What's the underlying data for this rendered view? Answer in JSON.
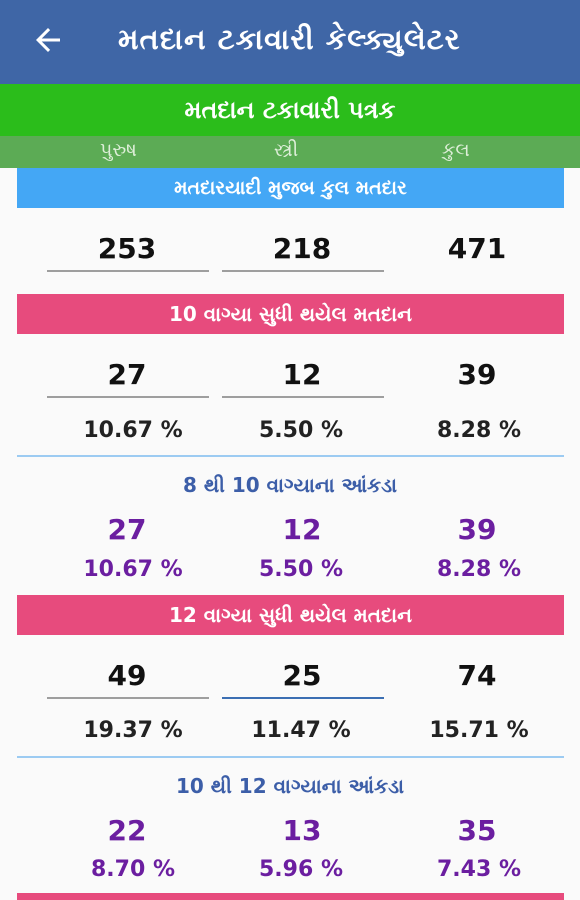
{
  "appbar": {
    "title": "મતદાન ટકાવારી કેલ્ક્યુલેટર",
    "back_icon": "arrow-left-icon"
  },
  "sheet_title": "મતદાન ટકાવારી પત્રક",
  "columns": [
    "પુરુષ",
    "સ્ત્રી",
    "કુલ"
  ],
  "total_voters": {
    "label": "મતદારયાદી મુજબ કુલ મતદાર",
    "male": "253",
    "female": "218",
    "total": "471"
  },
  "slot_10": {
    "label": "10 વાગ્યા સુધી થયેલ મતદાન",
    "male": "27",
    "female": "12",
    "total": "39",
    "male_pct": "10.67 %",
    "female_pct": "5.50 %",
    "total_pct": "8.28 %"
  },
  "range_8_10": {
    "label": "8 થી 10 વાગ્યાના આંકડા",
    "male": "27",
    "female": "12",
    "total": "39",
    "male_pct": "10.67 %",
    "female_pct": "5.50 %",
    "total_pct": "8.28 %"
  },
  "slot_12": {
    "label": "12 વાગ્યા સુધી થયેલ મતદાન",
    "male": "49",
    "female": "25",
    "total": "74",
    "male_pct": "19.37 %",
    "female_pct": "11.47 %",
    "total_pct": "15.71 %"
  },
  "range_10_12": {
    "label": "10 થી 12 વાગ્યાના આંકડા",
    "male": "22",
    "female": "13",
    "total": "35",
    "male_pct": "8.70 %",
    "female_pct": "5.96 %",
    "total_pct": "7.43 %"
  },
  "colors": {
    "appbar": "#3f66a6",
    "green": "#2bbd1b",
    "blue_header": "#44a7f5",
    "pink_header": "#e74b7d",
    "purple_value": "#6b1ea0"
  }
}
